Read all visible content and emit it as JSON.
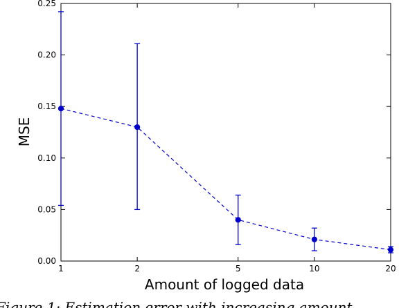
{
  "chart_data": {
    "type": "line",
    "title": "",
    "xlabel": "Amount of logged data",
    "ylabel": "MSE",
    "x_scale": "log",
    "x_ticks": [
      1,
      2,
      5,
      10,
      20
    ],
    "x_tick_labels": [
      "1",
      "2",
      "5",
      "10",
      "20"
    ],
    "y_ticks": [
      0.0,
      0.05,
      0.1,
      0.15,
      0.2,
      0.25
    ],
    "y_tick_labels": [
      "0.00",
      "0.05",
      "0.10",
      "0.15",
      "0.20",
      "0.25"
    ],
    "xlim": [
      1,
      20
    ],
    "ylim": [
      0,
      0.25
    ],
    "grid": false,
    "legend": "none",
    "series": [
      {
        "color": "#0000cc",
        "line_style": "dashed",
        "marker": "circle",
        "x": [
          1,
          2,
          5,
          10,
          20
        ],
        "y": [
          0.148,
          0.13,
          0.04,
          0.021,
          0.011
        ],
        "err_low": [
          0.054,
          0.05,
          0.016,
          0.01,
          0.008
        ],
        "err_high": [
          0.242,
          0.211,
          0.064,
          0.032,
          0.014
        ]
      }
    ]
  },
  "caption_fragment": "Figure 1: Estimation error with increasing amount"
}
